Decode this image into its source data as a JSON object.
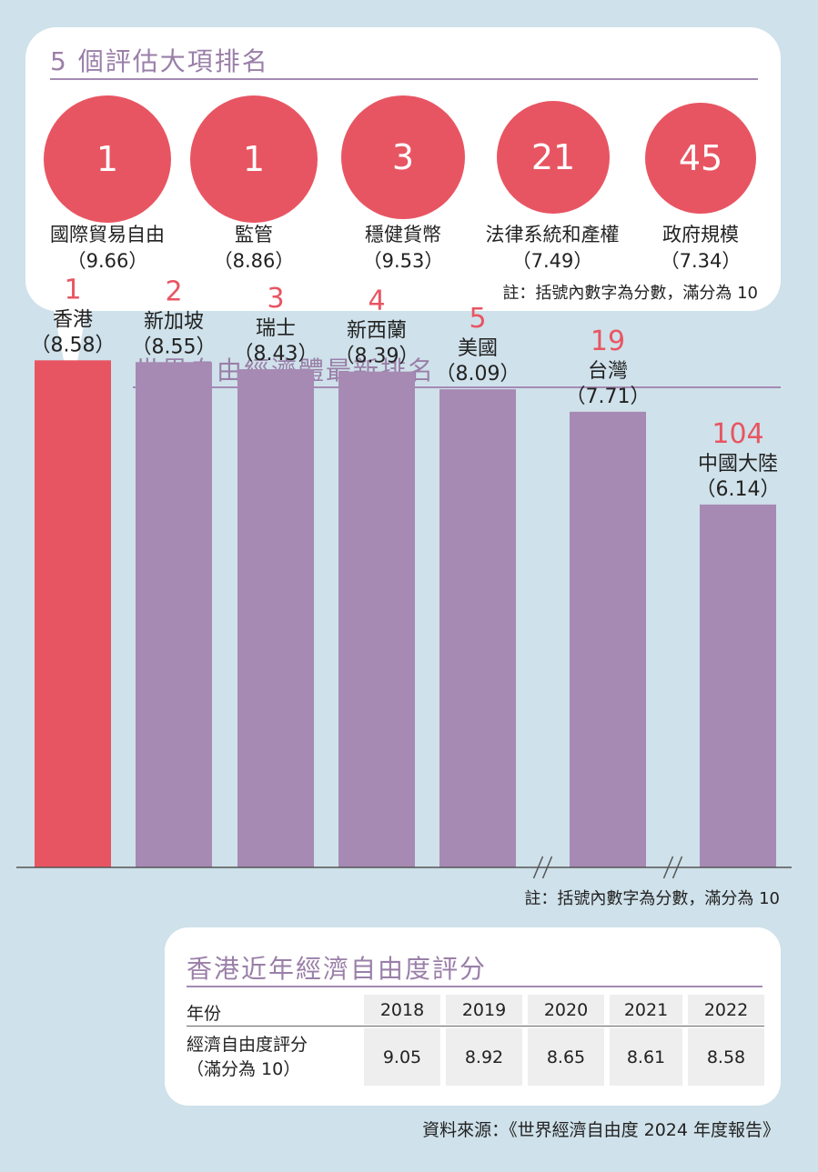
{
  "categories_section": {
    "title": "5 個評估大項排名",
    "items": [
      {
        "rank": "1",
        "name": "國際貿易自由",
        "score": "（9.66）"
      },
      {
        "rank": "1",
        "name": "監管",
        "score": "（8.86）"
      },
      {
        "rank": "3",
        "name": "穩健貨幣",
        "score": "（9.53）"
      },
      {
        "rank": "21",
        "name": "法律系統和產權",
        "score": "（7.49）"
      },
      {
        "rank": "45",
        "name": "政府規模",
        "score": "（7.34）"
      }
    ],
    "note": "註：括號內數字為分數，滿分為 10"
  },
  "chart_section": {
    "title": "世界自由經濟體最新排名",
    "note": "註：括號內數字為分數，滿分為 10"
  },
  "chart_data": {
    "type": "bar",
    "title": "世界自由經濟體最新排名",
    "categories": [
      "香港",
      "新加坡",
      "瑞士",
      "新西蘭",
      "美國",
      "台灣",
      "中國大陸"
    ],
    "ranks": [
      1,
      2,
      3,
      4,
      5,
      19,
      104
    ],
    "values": [
      8.58,
      8.55,
      8.43,
      8.39,
      8.09,
      7.71,
      6.14
    ],
    "value_labels": [
      "（8.58）",
      "（8.55）",
      "（8.43）",
      "（8.39）",
      "（8.09）",
      "（7.71）",
      "（6.14）"
    ],
    "axis_breaks_after": [
      "美國",
      "台灣"
    ],
    "highlight": "香港",
    "colors": {
      "highlight": "#e85562",
      "default": "#a68ab3",
      "rank": "#e85562"
    }
  },
  "table_section": {
    "title": "香港近年經濟自由度評分",
    "header_label": "年份",
    "row_label_line1": "經濟自由度評分",
    "row_label_line2": "（滿分為 10）",
    "years": [
      "2018",
      "2019",
      "2020",
      "2021",
      "2022"
    ],
    "scores": [
      "9.05",
      "8.92",
      "8.65",
      "8.61",
      "8.58"
    ]
  },
  "source": "資料來源：《世界經濟自由度 2024 年度報告》",
  "colors": {
    "background": "#cfe1ea",
    "accent": "#e85562",
    "purple": "#a68ab3"
  }
}
